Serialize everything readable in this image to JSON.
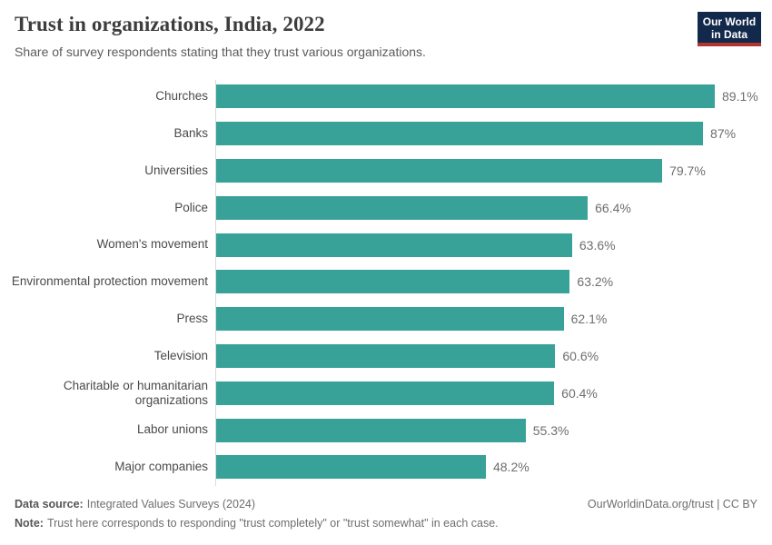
{
  "header": {
    "title": "Trust in organizations, India, 2022",
    "subtitle": "Share of survey respondents stating that they trust various organizations.",
    "logo": {
      "line1": "Our World",
      "line2": "in Data"
    }
  },
  "chart_data": {
    "type": "bar",
    "orientation": "horizontal",
    "title": "Trust in organizations, India, 2022",
    "xlabel": "",
    "ylabel": "",
    "xlim": [
      0,
      89.1
    ],
    "grid": false,
    "legend": false,
    "bar_color": "#38a198",
    "categories": [
      "Churches",
      "Banks",
      "Universities",
      "Police",
      "Women's movement",
      "Environmental protection movement",
      "Press",
      "Television",
      "Charitable or humanitarian organizations",
      "Labor unions",
      "Major companies"
    ],
    "values": [
      89.1,
      87,
      79.7,
      66.4,
      63.6,
      63.2,
      62.1,
      60.6,
      60.4,
      55.3,
      48.2
    ],
    "value_labels": [
      "89.1%",
      "87%",
      "79.7%",
      "66.4%",
      "63.6%",
      "63.2%",
      "62.1%",
      "60.6%",
      "60.4%",
      "55.3%",
      "48.2%"
    ]
  },
  "footer": {
    "source_label": "Data source:",
    "source_text": "Integrated Values Surveys (2024)",
    "note_label": "Note:",
    "note_text": "Trust here corresponds to responding \"trust completely\" or \"trust somewhat\" in each case.",
    "rights": "OurWorldinData.org/trust | CC BY"
  }
}
